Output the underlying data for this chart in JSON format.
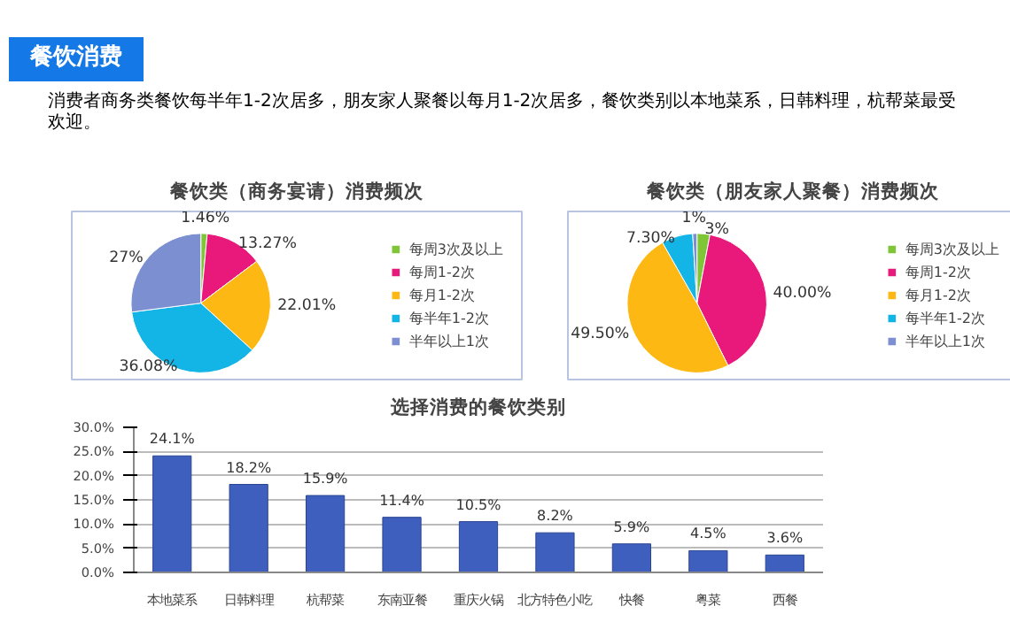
{
  "chart_data": [
    {
      "type": "pie",
      "title": "餐饮类（商务宴请）消费频次",
      "annotations": [
        "餐饮消费",
        "消费者商务类餐饮每半年1-2次居多，朋友家人聚餐以每月1-2次居多，餐饮类别以本地菜系，日韩料理，杭帮菜最受欢迎。"
      ],
      "categories": [
        "每周3次及以上",
        "每周1-2次",
        "每月1-2次",
        "每半年1-2次",
        "半年以上1次"
      ],
      "values": [
        1.46,
        13.27,
        22.01,
        36.08,
        27
      ],
      "value_labels": [
        "1.46%",
        "13.27%",
        "22.01%",
        "36.08%",
        "27%"
      ],
      "colors": [
        "#7ec636",
        "#e8197a",
        "#fdb813",
        "#13b5e6",
        "#7b8fd1"
      ],
      "legend": "right"
    },
    {
      "type": "pie",
      "title": "餐饮类（朋友家人聚餐）消费频次",
      "categories": [
        "每周3次及以上",
        "每周1-2次",
        "每月1-2次",
        "每半年1-2次",
        "半年以上1次"
      ],
      "values": [
        3,
        40.0,
        49.5,
        7.3,
        1
      ],
      "value_labels": [
        "3%",
        "40.00%",
        "49.50%",
        "7.30%",
        "1%"
      ],
      "colors": [
        "#7ec636",
        "#e8197a",
        "#fdb813",
        "#13b5e6",
        "#7b8fd1"
      ],
      "legend": "right"
    },
    {
      "type": "bar",
      "title": "选择消费的餐饮类别",
      "categories": [
        "本地菜系",
        "日韩料理",
        "杭帮菜",
        "东南亚餐",
        "重庆火锅",
        "北方特色小吃",
        "快餐",
        "粤菜",
        "西餐"
      ],
      "values": [
        24.1,
        18.2,
        15.9,
        11.4,
        10.5,
        8.2,
        5.9,
        4.5,
        3.6
      ],
      "value_labels": [
        "24.1%",
        "18.2%",
        "15.9%",
        "11.4%",
        "10.5%",
        "8.2%",
        "5.9%",
        "4.5%",
        "3.6%"
      ],
      "color": "#3f5fbf",
      "ylim": [
        0,
        30
      ],
      "yticks": [
        {
          "value": 0,
          "label": "0.0%"
        },
        {
          "value": 5,
          "label": "5.0%"
        },
        {
          "value": 10,
          "label": "10.0%"
        },
        {
          "value": 15,
          "label": "15.0%"
        },
        {
          "value": 20,
          "label": "20.0%"
        },
        {
          "value": 25,
          "label": "25.0%"
        },
        {
          "value": 30,
          "label": "30.0%"
        }
      ],
      "grid": "y"
    }
  ]
}
